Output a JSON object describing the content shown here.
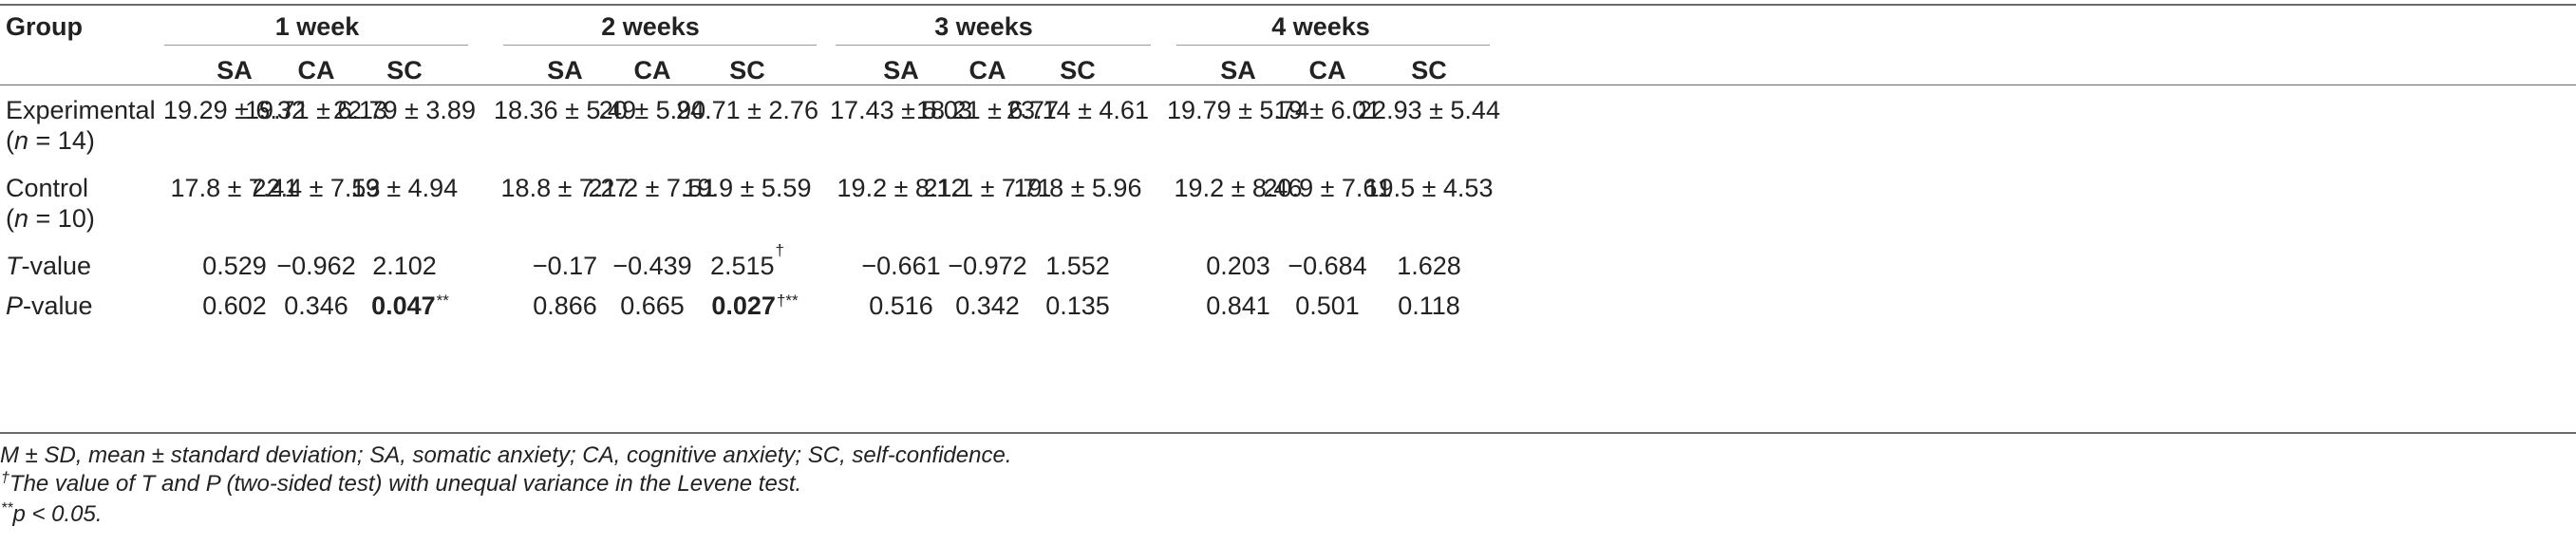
{
  "header": {
    "group": "Group",
    "weeks": [
      "1 week",
      "2 weeks",
      "3 weeks",
      "4 weeks"
    ],
    "subcols": [
      "SA",
      "CA",
      "SC"
    ]
  },
  "rows": [
    {
      "label": "Experimental",
      "sublabel_n": "n",
      "sublabel_val": " = 14)",
      "values": [
        "19.29 ± 6.32",
        "19.71 ± 6.13",
        "22.79 ± 3.89",
        "18.36 ± 5.49",
        "20 ± 5.90",
        "24.71 ± 2.76",
        "17.43 ± 5.03",
        "18.21 ± 6.77",
        "23.14 ± 4.61",
        "19.79 ± 5.74",
        "19 ± 6.01",
        "22.93 ± 5.44"
      ]
    },
    {
      "label": "Control",
      "sublabel_n": "n",
      "sublabel_val": " = 10)",
      "values": [
        "17.8 ± 7.41",
        "22.4 ± 7.53",
        "19 ± 4.94",
        "18.8 ± 7.27",
        "21.2 ± 7.51",
        "19.9 ± 5.59",
        "19.2 ± 8.12",
        "21.1 ± 7.71",
        "19.8 ± 5.96",
        "19.2 ± 8.46",
        "20.9 ± 7.61",
        "19.5 ± 4.53"
      ]
    },
    {
      "label_italic": "T",
      "label_rest": "-value",
      "values": [
        "0.529",
        "−0.962",
        "2.102",
        "−0.17",
        "−0.439",
        "2.515",
        "−0.661",
        "−0.972",
        "1.552",
        "0.203",
        "−0.684",
        "1.628"
      ]
    },
    {
      "label_italic": "P",
      "label_rest": "-value",
      "values": [
        "0.602",
        "0.346",
        "0.047",
        "0.866",
        "0.665",
        "0.027",
        "0.516",
        "0.342",
        "0.135",
        "0.841",
        "0.501",
        "0.118"
      ]
    }
  ],
  "marks": {
    "dagger": "†",
    "double_star": "**",
    "dagger_star": "†**"
  },
  "footnotes": {
    "abbrev": "M ± SD, mean ± standard deviation; SA, somatic anxiety; CA, cognitive anxiety; SC, self-confidence.",
    "dagger_mark": "†",
    "dagger_note": "The value of T and P (two-sided test) with unequal variance in the Levene test.",
    "star_mark": "**",
    "star_note": "p < 0.05."
  }
}
